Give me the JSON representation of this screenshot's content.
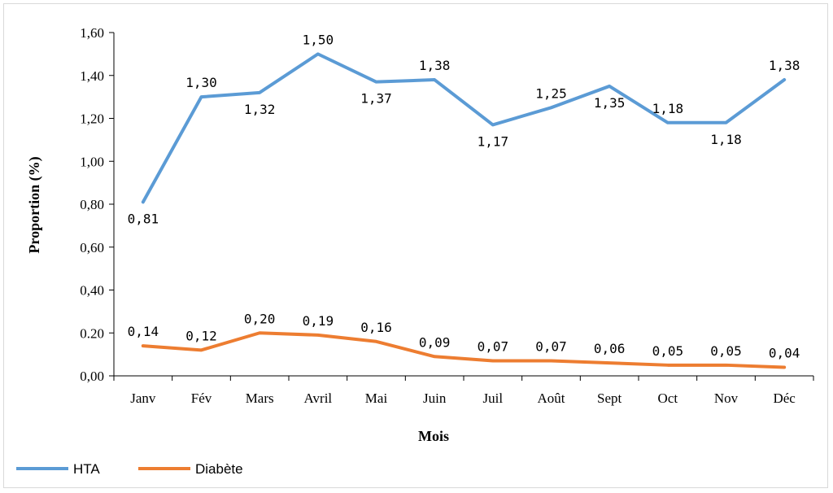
{
  "chart_data": {
    "type": "line",
    "title": "",
    "xlabel": "Mois",
    "ylabel": "Proportion (%)",
    "categories": [
      "Janv",
      "Fév",
      "Mars",
      "Avril",
      "Mai",
      "Juin",
      "Juil",
      "Août",
      "Sept",
      "Oct",
      "Nov",
      "Déc"
    ],
    "ylim": [
      0,
      1.6
    ],
    "yticks": [
      "0,00",
      "0.20",
      "0,40",
      "0,60",
      "0,80",
      "1,00",
      "1,20",
      "1,40",
      "1,60"
    ],
    "grid": false,
    "legend_position": "bottom-left",
    "series": [
      {
        "name": "HTA",
        "color": "#5b9bd5",
        "values": [
          0.81,
          1.3,
          1.32,
          1.5,
          1.37,
          1.38,
          1.17,
          1.25,
          1.35,
          1.18,
          1.18,
          1.38
        ],
        "labels": [
          "0,81",
          "1,30",
          "1,32",
          "1,50",
          "1,37",
          "1,38",
          "1,17",
          "1,25",
          "1,35",
          "1,18",
          "1,18",
          "1,38"
        ]
      },
      {
        "name": "Diabète",
        "color": "#ed7d31",
        "values": [
          0.14,
          0.12,
          0.2,
          0.19,
          0.16,
          0.09,
          0.07,
          0.07,
          0.06,
          0.05,
          0.05,
          0.04
        ],
        "labels": [
          "0,14",
          "0,12",
          "0,20",
          "0,19",
          "0,16",
          "0,09",
          "0,07",
          "0,07",
          "0,06",
          "0,05",
          "0,05",
          "0,04"
        ]
      }
    ]
  }
}
